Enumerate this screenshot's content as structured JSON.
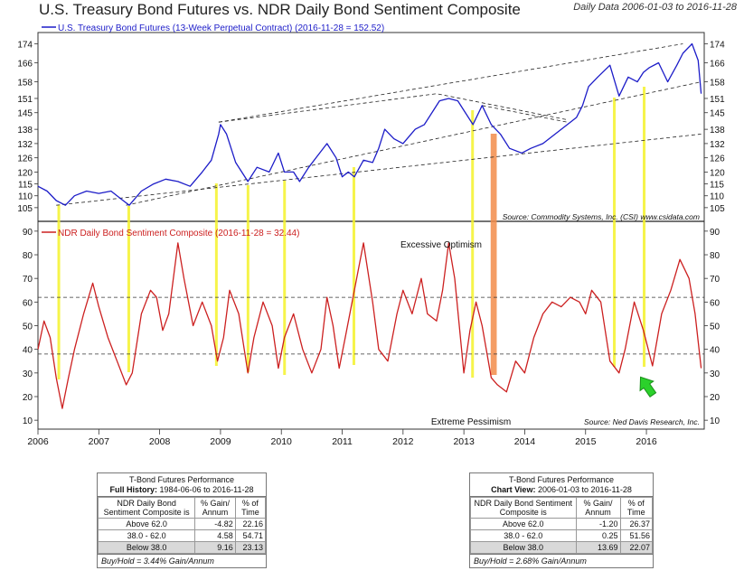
{
  "header": {
    "title": "U.S. Treasury Bond Futures vs. NDR Daily Bond Sentiment Composite",
    "subtitle": "Daily Data 2006-01-03 to 2016-11-28"
  },
  "chart_data": [
    {
      "type": "line",
      "legend": "U.S. Treasury Bond Futures (13-Week Perpetual Contract) (2016-11-28 = 152.52)",
      "source": "Source:  Commodity Systems, Inc. (CSI) www.csidata.com",
      "y_ticks": [
        174,
        166,
        158,
        151,
        145,
        138,
        132,
        126,
        120,
        115,
        110,
        105
      ],
      "ylim": [
        100,
        178
      ],
      "series": [
        {
          "color": "#1c1cc8",
          "x": [
            2006.0,
            2006.15,
            2006.3,
            2006.45,
            2006.6,
            2006.8,
            2007.0,
            2007.2,
            2007.4,
            2007.5,
            2007.7,
            2007.9,
            2008.1,
            2008.3,
            2008.5,
            2008.7,
            2008.85,
            2008.97,
            2009.0,
            2009.1,
            2009.25,
            2009.45,
            2009.6,
            2009.8,
            2009.95,
            2010.05,
            2010.2,
            2010.3,
            2010.45,
            2010.6,
            2010.75,
            2010.9,
            2011.0,
            2011.1,
            2011.2,
            2011.35,
            2011.5,
            2011.6,
            2011.7,
            2011.85,
            2012.0,
            2012.2,
            2012.35,
            2012.5,
            2012.6,
            2012.75,
            2012.9,
            2013.0,
            2013.15,
            2013.3,
            2013.45,
            2013.6,
            2013.75,
            2013.95,
            2014.1,
            2014.3,
            2014.5,
            2014.7,
            2014.85,
            2014.95,
            2015.05,
            2015.2,
            2015.4,
            2015.55,
            2015.7,
            2015.85,
            2015.95,
            2016.05,
            2016.2,
            2016.35,
            2016.5,
            2016.6,
            2016.75,
            2016.85,
            2016.9
          ],
          "y": [
            114,
            112,
            108,
            106,
            110,
            112,
            111,
            112,
            108,
            106,
            112,
            115,
            117,
            116,
            114,
            120,
            125,
            136,
            140,
            136,
            124,
            116,
            122,
            120,
            128,
            120,
            120,
            116,
            122,
            127,
            132,
            126,
            118,
            120,
            118,
            125,
            124,
            130,
            138,
            134,
            132,
            138,
            140,
            146,
            150,
            151,
            150,
            146,
            140,
            148,
            140,
            136,
            130,
            128,
            130,
            132,
            136,
            140,
            143,
            148,
            156,
            160,
            165,
            152,
            160,
            158,
            162,
            164,
            166,
            158,
            165,
            170,
            174,
            167,
            153
          ]
        }
      ]
    },
    {
      "type": "line",
      "legend": "NDR Daily Bond Sentiment Composite (2016-11-28 = 32.44)",
      "source": "Source:  Ned Davis Research, Inc.",
      "annotations": [
        "Excessive Optimism",
        "Extreme Pessimism"
      ],
      "y_ticks": [
        90,
        80,
        70,
        60,
        50,
        40,
        30,
        20,
        10
      ],
      "ylim": [
        7,
        93
      ],
      "hlines": [
        62,
        38
      ],
      "series": [
        {
          "color": "#cc2020",
          "x": [
            2006.0,
            2006.1,
            2006.2,
            2006.3,
            2006.4,
            2006.5,
            2006.6,
            2006.75,
            2006.9,
            2007.0,
            2007.15,
            2007.3,
            2007.45,
            2007.55,
            2007.7,
            2007.85,
            2007.95,
            2008.05,
            2008.15,
            2008.3,
            2008.4,
            2008.55,
            2008.7,
            2008.85,
            2008.95,
            2009.05,
            2009.15,
            2009.3,
            2009.45,
            2009.55,
            2009.7,
            2009.85,
            2009.95,
            2010.05,
            2010.2,
            2010.35,
            2010.5,
            2010.65,
            2010.75,
            2010.85,
            2010.95,
            2011.05,
            2011.2,
            2011.35,
            2011.5,
            2011.6,
            2011.75,
            2011.9,
            2012.0,
            2012.15,
            2012.3,
            2012.4,
            2012.55,
            2012.65,
            2012.75,
            2012.85,
            2013.0,
            2013.1,
            2013.2,
            2013.3,
            2013.45,
            2013.55,
            2013.7,
            2013.85,
            2014.0,
            2014.15,
            2014.3,
            2014.45,
            2014.6,
            2014.75,
            2014.9,
            2015.0,
            2015.1,
            2015.25,
            2015.4,
            2015.55,
            2015.65,
            2015.8,
            2015.95,
            2016.1,
            2016.25,
            2016.4,
            2016.55,
            2016.7,
            2016.8,
            2016.9
          ],
          "y": [
            40,
            52,
            45,
            28,
            15,
            28,
            40,
            55,
            68,
            58,
            45,
            35,
            25,
            30,
            55,
            65,
            62,
            48,
            55,
            85,
            70,
            50,
            60,
            50,
            35,
            45,
            65,
            55,
            30,
            45,
            60,
            50,
            32,
            45,
            55,
            40,
            30,
            40,
            62,
            50,
            32,
            45,
            65,
            85,
            60,
            40,
            35,
            55,
            65,
            55,
            70,
            55,
            52,
            65,
            85,
            70,
            30,
            48,
            60,
            50,
            28,
            25,
            22,
            35,
            30,
            45,
            55,
            60,
            58,
            62,
            60,
            55,
            65,
            60,
            35,
            30,
            40,
            60,
            48,
            33,
            55,
            65,
            78,
            70,
            55,
            32
          ]
        }
      ]
    }
  ],
  "x_ticks": [
    "2006",
    "2007",
    "2008",
    "2009",
    "2010",
    "2011",
    "2012",
    "2013",
    "2014",
    "2015",
    "2016"
  ],
  "table_full": {
    "caption_title": "T-Bond Futures Performance",
    "caption_label": "Full History:",
    "caption_range": "1984-06-06 to 2016-11-28",
    "col1": "NDR Daily Bond Sentiment Composite is",
    "col2": "% Gain/ Annum",
    "col3": "% of Time",
    "rows": [
      {
        "label": "Above 62.0",
        "gain": "-4.82",
        "time": "22.16"
      },
      {
        "label": "38.0 - 62.0",
        "gain": "4.58",
        "time": "54.71"
      },
      {
        "label": "Below 38.0",
        "gain": "9.16",
        "time": "23.13"
      }
    ],
    "footer": "Buy/Hold = 3.44% Gain/Annum"
  },
  "table_view": {
    "caption_title": "T-Bond Futures Performance",
    "caption_label": "Chart View:",
    "caption_range": "2006-01-03 to 2016-11-28",
    "col1": "NDR Daily Bond Sentiment Composite is",
    "col2": "% Gain/ Annum",
    "col3": "% of Time",
    "rows": [
      {
        "label": "Above 62.0",
        "gain": "-1.20",
        "time": "26.37"
      },
      {
        "label": "38.0 - 62.0",
        "gain": "0.25",
        "time": "51.56"
      },
      {
        "label": "Below 38.0",
        "gain": "13.69",
        "time": "22.07"
      }
    ],
    "footer": "Buy/Hold = 2.68% Gain/Annum"
  }
}
